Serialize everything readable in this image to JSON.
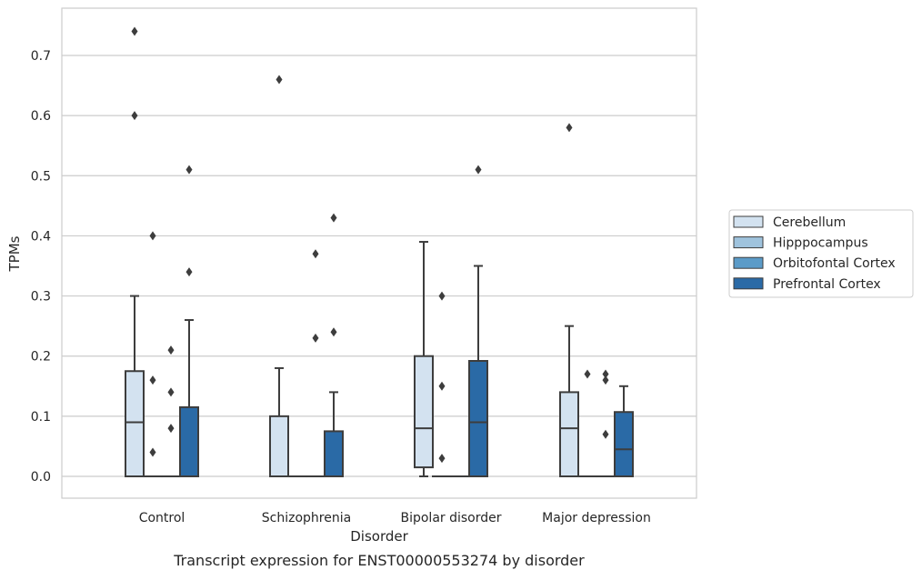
{
  "chart_data": {
    "type": "boxplot",
    "xlabel": "Disorder",
    "ylabel": "TPMs",
    "caption": "Transcript expression for ENST00000553274 by disorder",
    "ylim": [
      -0.036,
      0.778
    ],
    "yticks": [
      0.0,
      0.1,
      0.2,
      0.3,
      0.4,
      0.5,
      0.6,
      0.7
    ],
    "ytick_labels": [
      "0.0",
      "0.1",
      "0.2",
      "0.3",
      "0.4",
      "0.5",
      "0.6",
      "0.7"
    ],
    "grid": "horizontal",
    "legend_position": "outside-right",
    "categories": [
      "Control",
      "Schizophrenia",
      "Bipolar disorder",
      "Major depression"
    ],
    "series": [
      {
        "name": "Cerebellum",
        "color": "#d3e2f0",
        "boxes": [
          {
            "q1": 0.0,
            "median": 0.09,
            "q3": 0.175,
            "whisker_low": 0.0,
            "whisker_high": 0.3,
            "outliers": [
              0.74,
              0.6
            ]
          },
          {
            "q1": 0.0,
            "median": 0.0,
            "q3": 0.1,
            "whisker_low": 0.0,
            "whisker_high": 0.18,
            "outliers": [
              0.66
            ]
          },
          {
            "q1": 0.015,
            "median": 0.08,
            "q3": 0.2,
            "whisker_low": 0.0,
            "whisker_high": 0.39,
            "outliers": []
          },
          {
            "q1": 0.0,
            "median": 0.08,
            "q3": 0.14,
            "whisker_low": 0.0,
            "whisker_high": 0.25,
            "outliers": [
              0.58
            ]
          }
        ]
      },
      {
        "name": "Hipppocampus",
        "color": "#9fc3dd",
        "boxes": [
          {
            "q1": 0.0,
            "median": 0.0,
            "q3": 0.0,
            "whisker_low": 0.0,
            "whisker_high": 0.0,
            "outliers": [
              0.4,
              0.16,
              0.04
            ]
          },
          {
            "q1": 0.0,
            "median": 0.0,
            "q3": 0.0,
            "whisker_low": 0.0,
            "whisker_high": 0.0,
            "outliers": []
          },
          {
            "q1": 0.0,
            "median": 0.0,
            "q3": 0.0,
            "whisker_low": 0.0,
            "whisker_high": 0.0,
            "outliers": [
              0.3,
              0.15,
              0.03
            ]
          },
          {
            "q1": 0.0,
            "median": 0.0,
            "q3": 0.0,
            "whisker_low": 0.0,
            "whisker_high": 0.0,
            "outliers": [
              0.17
            ]
          }
        ]
      },
      {
        "name": "Orbitofontal Cortex",
        "color": "#5b9bc8",
        "boxes": [
          {
            "q1": 0.0,
            "median": 0.0,
            "q3": 0.0,
            "whisker_low": 0.0,
            "whisker_high": 0.0,
            "outliers": [
              0.21,
              0.14,
              0.08
            ]
          },
          {
            "q1": 0.0,
            "median": 0.0,
            "q3": 0.0,
            "whisker_low": 0.0,
            "whisker_high": 0.0,
            "outliers": [
              0.37,
              0.23
            ]
          },
          {
            "q1": 0.0,
            "median": 0.0,
            "q3": 0.0,
            "whisker_low": 0.0,
            "whisker_high": 0.0,
            "outliers": []
          },
          {
            "q1": 0.0,
            "median": 0.0,
            "q3": 0.0,
            "whisker_low": 0.0,
            "whisker_high": 0.0,
            "outliers": [
              0.17,
              0.16,
              0.07
            ]
          }
        ]
      },
      {
        "name": "Prefrontal Cortex",
        "color": "#2a6aa6",
        "boxes": [
          {
            "q1": 0.0,
            "median": 0.0,
            "q3": 0.115,
            "whisker_low": 0.0,
            "whisker_high": 0.26,
            "outliers": [
              0.51,
              0.34
            ]
          },
          {
            "q1": 0.0,
            "median": 0.0,
            "q3": 0.075,
            "whisker_low": 0.0,
            "whisker_high": 0.14,
            "outliers": [
              0.43,
              0.24
            ]
          },
          {
            "q1": 0.0,
            "median": 0.09,
            "q3": 0.192,
            "whisker_low": 0.0,
            "whisker_high": 0.35,
            "outliers": [
              0.51
            ]
          },
          {
            "q1": 0.0,
            "median": 0.045,
            "q3": 0.107,
            "whisker_low": 0.0,
            "whisker_high": 0.15,
            "outliers": []
          }
        ]
      }
    ]
  }
}
